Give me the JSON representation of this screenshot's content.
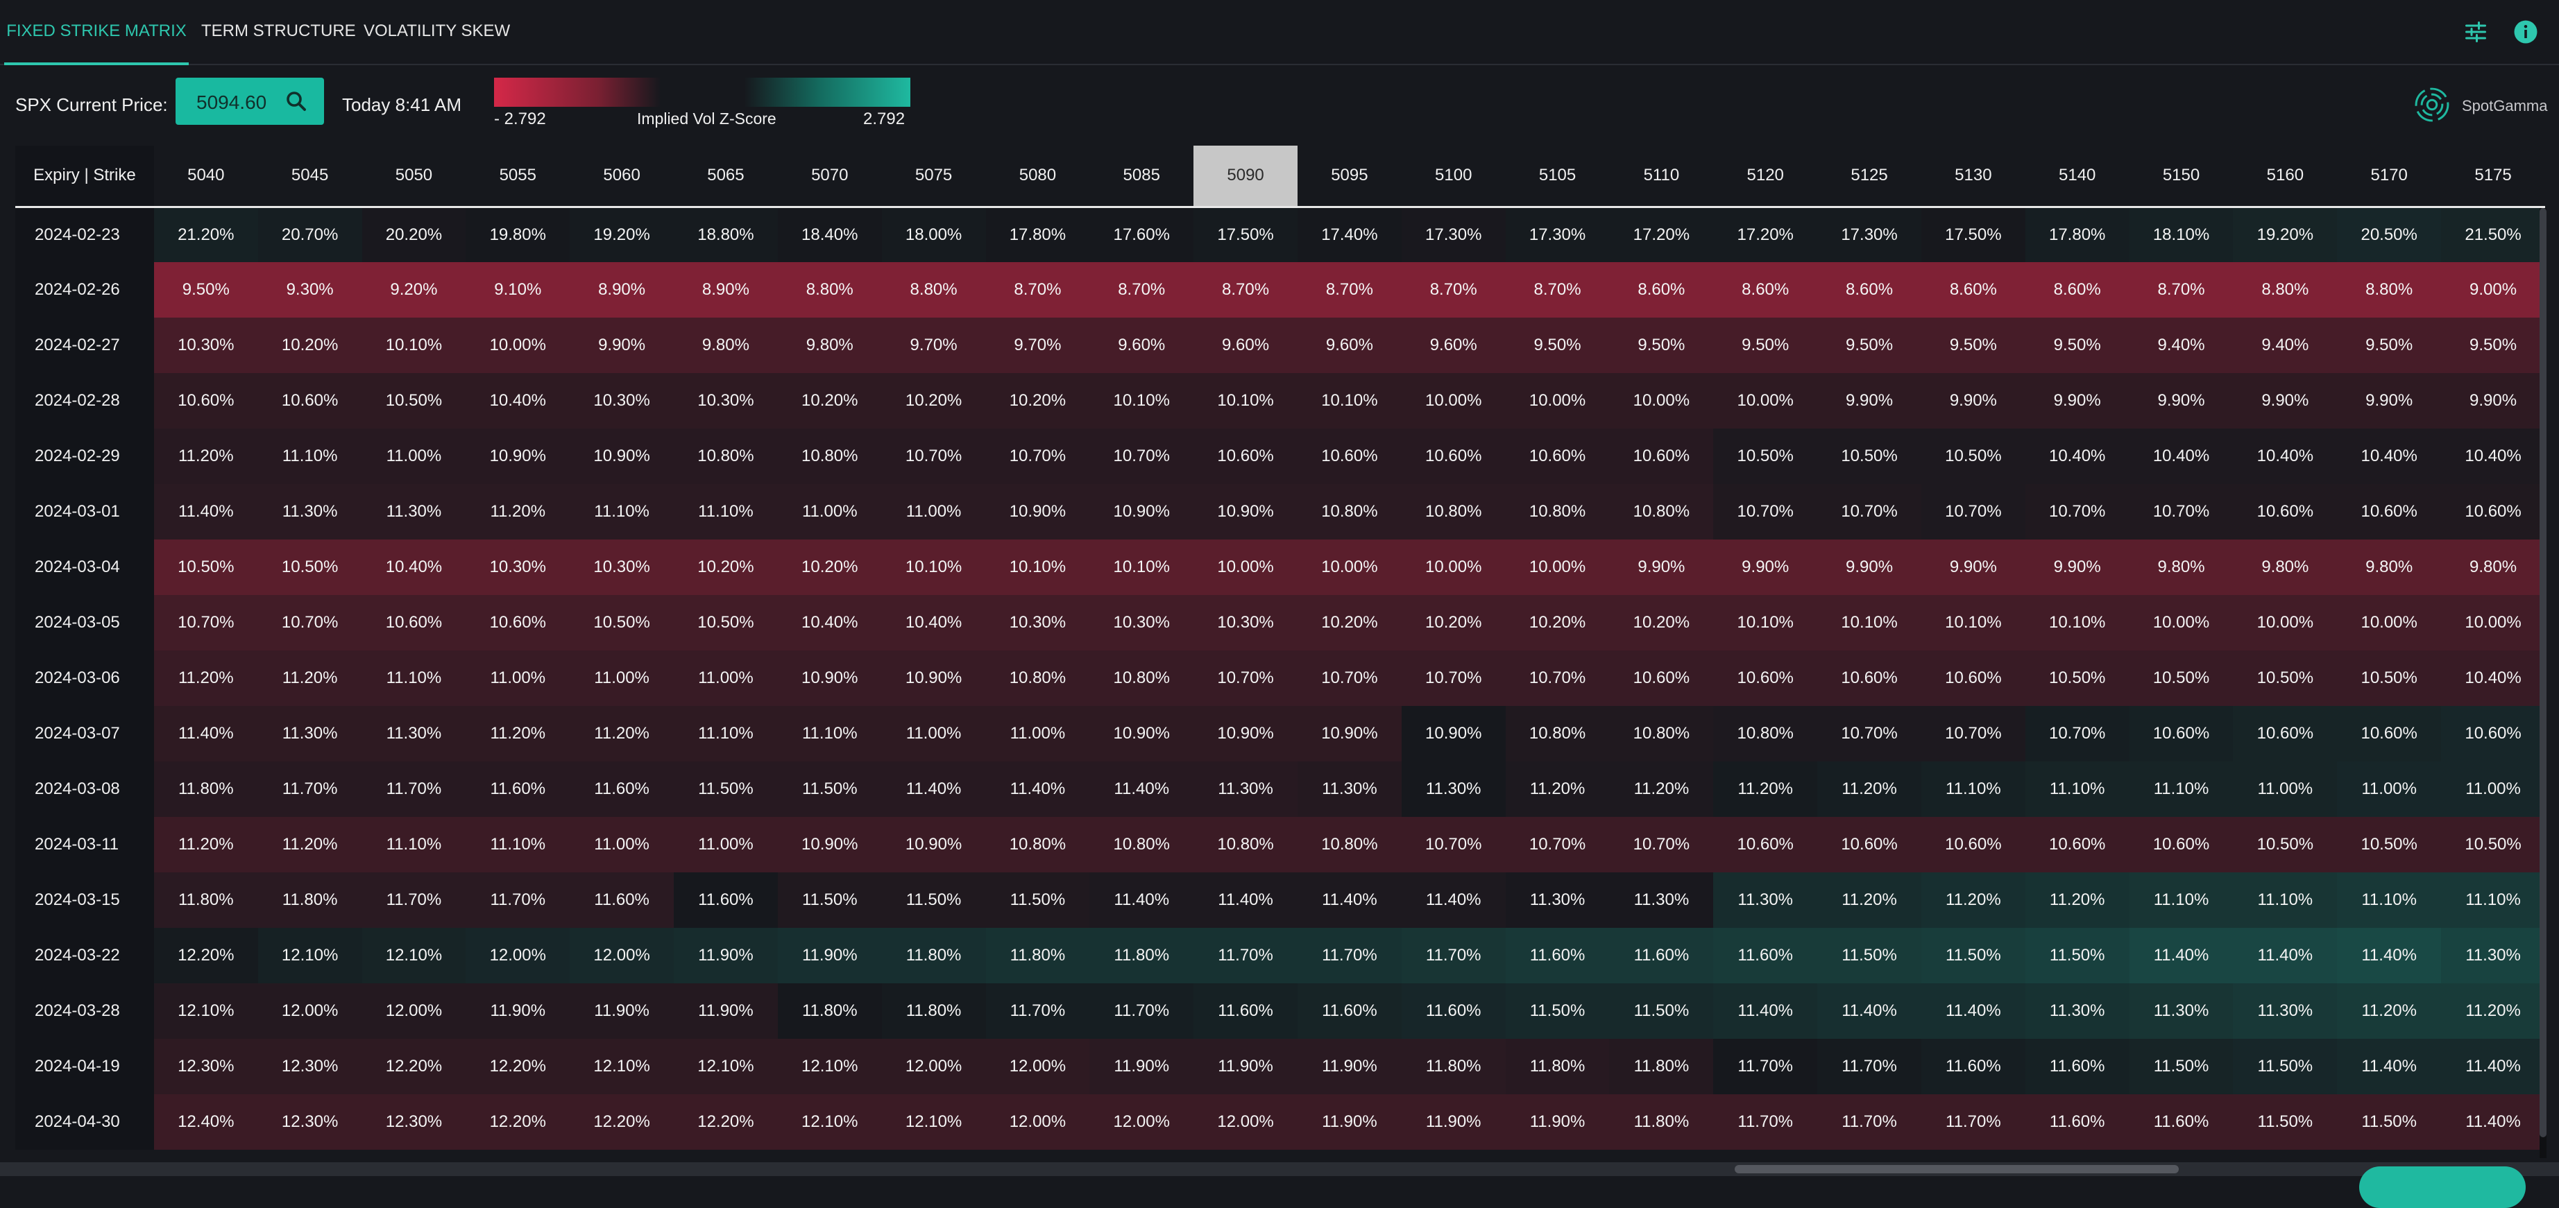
{
  "tabs": [
    {
      "label": "FIXED STRIKE MATRIX",
      "active": true
    },
    {
      "label": "TERM STRUCTURE",
      "active": false
    },
    {
      "label": "VOLATILITY SKEW",
      "active": false
    }
  ],
  "header_icons": [
    "sliders-icon",
    "info-icon"
  ],
  "controls": {
    "price_label": "SPX Current Price:",
    "price_value": "5094.60",
    "time_label": "Today 8:41 AM"
  },
  "scale": {
    "min": "- 2.792",
    "title": "Implied Vol Z-Score",
    "max": "2.792",
    "colors": {
      "negative": "#d42848",
      "neutral": "#16181d",
      "positive": "#1fb9a0"
    }
  },
  "brand": {
    "name": "SpotGamma"
  },
  "matrix": {
    "corner_label": "Expiry | Strike",
    "highlight_strike": "5090",
    "strikes": [
      "5040",
      "5045",
      "5050",
      "5055",
      "5060",
      "5065",
      "5070",
      "5075",
      "5080",
      "5085",
      "5090",
      "5095",
      "5100",
      "5105",
      "5110",
      "5120",
      "5125",
      "5130",
      "5140",
      "5150",
      "5160",
      "5170",
      "5175"
    ],
    "rows": [
      {
        "expiry": "2024-02-23",
        "values": [
          "21.20%",
          "20.70%",
          "20.20%",
          "19.80%",
          "19.20%",
          "18.80%",
          "18.40%",
          "18.00%",
          "17.80%",
          "17.60%",
          "17.50%",
          "17.40%",
          "17.30%",
          "17.30%",
          "17.20%",
          "17.20%",
          "17.30%",
          "17.50%",
          "17.80%",
          "18.10%",
          "19.20%",
          "20.50%",
          "21.50%"
        ],
        "z": [
          0.15,
          0.1,
          -0.05,
          0.0,
          0.05,
          0.05,
          0.0,
          0.05,
          0.0,
          0.0,
          0.05,
          0.0,
          -0.05,
          0.05,
          0.05,
          0.05,
          0.05,
          -0.02,
          0.1,
          0.15,
          0.2,
          0.25,
          0.2
        ]
      },
      {
        "expiry": "2024-02-26",
        "values": [
          "9.50%",
          "9.30%",
          "9.20%",
          "9.10%",
          "8.90%",
          "8.90%",
          "8.80%",
          "8.80%",
          "8.70%",
          "8.70%",
          "8.70%",
          "8.70%",
          "8.70%",
          "8.70%",
          "8.60%",
          "8.60%",
          "8.60%",
          "8.60%",
          "8.60%",
          "8.70%",
          "8.80%",
          "8.80%",
          "9.00%"
        ],
        "z": [
          -1.55,
          -1.55,
          -1.55,
          -1.55,
          -1.55,
          -1.55,
          -1.55,
          -1.55,
          -1.55,
          -1.55,
          -1.55,
          -1.55,
          -1.55,
          -1.55,
          -1.55,
          -1.55,
          -1.55,
          -1.55,
          -1.55,
          -1.55,
          -1.55,
          -1.55,
          -1.55
        ]
      },
      {
        "expiry": "2024-02-27",
        "values": [
          "10.30%",
          "10.20%",
          "10.10%",
          "10.00%",
          "9.90%",
          "9.80%",
          "9.80%",
          "9.70%",
          "9.70%",
          "9.60%",
          "9.60%",
          "9.60%",
          "9.60%",
          "9.50%",
          "9.50%",
          "9.50%",
          "9.50%",
          "9.50%",
          "9.50%",
          "9.40%",
          "9.40%",
          "9.50%",
          "9.50%"
        ],
        "z": [
          -0.7,
          -0.7,
          -0.7,
          -0.7,
          -0.7,
          -0.7,
          -0.7,
          -0.7,
          -0.7,
          -0.7,
          -0.7,
          -0.7,
          -0.7,
          -0.7,
          -0.7,
          -0.7,
          -0.7,
          -0.7,
          -0.7,
          -0.7,
          -0.7,
          -0.7,
          -0.7
        ]
      },
      {
        "expiry": "2024-02-28",
        "values": [
          "10.60%",
          "10.60%",
          "10.50%",
          "10.40%",
          "10.30%",
          "10.30%",
          "10.20%",
          "10.20%",
          "10.20%",
          "10.10%",
          "10.10%",
          "10.10%",
          "10.00%",
          "10.00%",
          "10.00%",
          "10.00%",
          "9.90%",
          "9.90%",
          "9.90%",
          "9.90%",
          "9.90%",
          "9.90%",
          "9.90%"
        ],
        "z": [
          -0.35,
          -0.35,
          -0.35,
          -0.35,
          -0.35,
          -0.35,
          -0.35,
          -0.35,
          -0.35,
          -0.35,
          -0.35,
          -0.35,
          -0.35,
          -0.35,
          -0.35,
          -0.35,
          -0.35,
          -0.35,
          -0.35,
          -0.35,
          -0.35,
          -0.35,
          -0.35
        ]
      },
      {
        "expiry": "2024-02-29",
        "values": [
          "11.20%",
          "11.10%",
          "11.00%",
          "10.90%",
          "10.90%",
          "10.80%",
          "10.80%",
          "10.70%",
          "10.70%",
          "10.70%",
          "10.60%",
          "10.60%",
          "10.60%",
          "10.60%",
          "10.60%",
          "10.50%",
          "10.50%",
          "10.50%",
          "10.40%",
          "10.40%",
          "10.40%",
          "10.40%",
          "10.40%"
        ],
        "z": [
          -0.25,
          -0.25,
          -0.25,
          -0.25,
          -0.25,
          -0.25,
          -0.25,
          -0.25,
          -0.25,
          -0.25,
          -0.25,
          -0.25,
          -0.25,
          -0.25,
          -0.25,
          -0.1,
          -0.1,
          -0.1,
          -0.1,
          -0.1,
          -0.1,
          -0.1,
          -0.1
        ]
      },
      {
        "expiry": "2024-03-01",
        "values": [
          "11.40%",
          "11.30%",
          "11.30%",
          "11.20%",
          "11.10%",
          "11.10%",
          "11.00%",
          "11.00%",
          "10.90%",
          "10.90%",
          "10.90%",
          "10.80%",
          "10.80%",
          "10.80%",
          "10.80%",
          "10.70%",
          "10.70%",
          "10.70%",
          "10.70%",
          "10.70%",
          "10.60%",
          "10.60%",
          "10.60%"
        ],
        "z": [
          -0.3,
          -0.3,
          -0.3,
          -0.3,
          -0.3,
          -0.3,
          -0.3,
          -0.3,
          -0.3,
          -0.3,
          -0.3,
          -0.3,
          -0.3,
          -0.3,
          -0.3,
          -0.15,
          -0.15,
          -0.1,
          -0.15,
          -0.15,
          -0.15,
          -0.15,
          -0.15
        ]
      },
      {
        "expiry": "2024-03-04",
        "values": [
          "10.50%",
          "10.50%",
          "10.40%",
          "10.30%",
          "10.30%",
          "10.20%",
          "10.20%",
          "10.10%",
          "10.10%",
          "10.10%",
          "10.00%",
          "10.00%",
          "10.00%",
          "10.00%",
          "9.90%",
          "9.90%",
          "9.90%",
          "9.90%",
          "9.90%",
          "9.80%",
          "9.80%",
          "9.80%",
          "9.80%"
        ],
        "z": [
          -1.0,
          -1.0,
          -1.0,
          -1.0,
          -1.0,
          -1.0,
          -1.0,
          -1.0,
          -1.0,
          -1.0,
          -1.0,
          -1.0,
          -1.0,
          -1.0,
          -1.0,
          -1.0,
          -1.0,
          -1.0,
          -1.0,
          -1.0,
          -1.0,
          -1.0,
          -1.0
        ]
      },
      {
        "expiry": "2024-03-05",
        "values": [
          "10.70%",
          "10.70%",
          "10.60%",
          "10.60%",
          "10.50%",
          "10.50%",
          "10.40%",
          "10.40%",
          "10.30%",
          "10.30%",
          "10.30%",
          "10.20%",
          "10.20%",
          "10.20%",
          "10.20%",
          "10.10%",
          "10.10%",
          "10.10%",
          "10.10%",
          "10.00%",
          "10.00%",
          "10.00%",
          "10.00%"
        ],
        "z": [
          -0.65,
          -0.65,
          -0.65,
          -0.65,
          -0.65,
          -0.65,
          -0.65,
          -0.65,
          -0.65,
          -0.65,
          -0.65,
          -0.65,
          -0.65,
          -0.65,
          -0.65,
          -0.65,
          -0.65,
          -0.65,
          -0.65,
          -0.65,
          -0.65,
          -0.65,
          -0.65
        ]
      },
      {
        "expiry": "2024-03-06",
        "values": [
          "11.20%",
          "11.20%",
          "11.10%",
          "11.00%",
          "11.00%",
          "11.00%",
          "10.90%",
          "10.90%",
          "10.80%",
          "10.80%",
          "10.70%",
          "10.70%",
          "10.70%",
          "10.70%",
          "10.60%",
          "10.60%",
          "10.60%",
          "10.60%",
          "10.50%",
          "10.50%",
          "10.50%",
          "10.50%",
          "10.40%"
        ],
        "z": [
          -0.5,
          -0.5,
          -0.5,
          -0.5,
          -0.5,
          -0.5,
          -0.5,
          -0.5,
          -0.5,
          -0.5,
          -0.5,
          -0.5,
          -0.5,
          -0.5,
          -0.5,
          -0.5,
          -0.5,
          -0.5,
          -0.5,
          -0.5,
          -0.5,
          -0.5,
          -0.5
        ]
      },
      {
        "expiry": "2024-03-07",
        "values": [
          "11.40%",
          "11.30%",
          "11.30%",
          "11.20%",
          "11.20%",
          "11.10%",
          "11.10%",
          "11.00%",
          "11.00%",
          "10.90%",
          "10.90%",
          "10.90%",
          "10.90%",
          "10.80%",
          "10.80%",
          "10.80%",
          "10.70%",
          "10.70%",
          "10.70%",
          "10.60%",
          "10.60%",
          "10.60%",
          "10.60%"
        ],
        "z": [
          -0.35,
          -0.35,
          -0.35,
          -0.35,
          -0.35,
          -0.35,
          -0.35,
          -0.35,
          -0.35,
          -0.35,
          -0.35,
          -0.35,
          0.0,
          -0.15,
          -0.15,
          -0.1,
          -0.1,
          -0.1,
          0.1,
          0.15,
          0.2,
          0.2,
          0.25
        ]
      },
      {
        "expiry": "2024-03-08",
        "values": [
          "11.80%",
          "11.70%",
          "11.70%",
          "11.60%",
          "11.60%",
          "11.50%",
          "11.50%",
          "11.40%",
          "11.40%",
          "11.40%",
          "11.30%",
          "11.30%",
          "11.30%",
          "11.20%",
          "11.20%",
          "11.20%",
          "11.20%",
          "11.10%",
          "11.10%",
          "11.10%",
          "11.00%",
          "11.00%",
          "11.00%"
        ],
        "z": [
          -0.25,
          -0.25,
          -0.25,
          -0.25,
          -0.25,
          -0.25,
          -0.25,
          -0.25,
          -0.25,
          -0.25,
          -0.25,
          -0.2,
          0.0,
          -0.1,
          -0.1,
          0.05,
          0.1,
          0.15,
          0.2,
          0.2,
          0.2,
          0.25,
          0.25
        ]
      },
      {
        "expiry": "2024-03-11",
        "values": [
          "11.20%",
          "11.20%",
          "11.10%",
          "11.10%",
          "11.00%",
          "11.00%",
          "10.90%",
          "10.90%",
          "10.80%",
          "10.80%",
          "10.80%",
          "10.80%",
          "10.70%",
          "10.70%",
          "10.70%",
          "10.60%",
          "10.60%",
          "10.60%",
          "10.60%",
          "10.60%",
          "10.50%",
          "10.50%",
          "10.50%"
        ],
        "z": [
          -0.55,
          -0.55,
          -0.55,
          -0.55,
          -0.55,
          -0.55,
          -0.55,
          -0.55,
          -0.55,
          -0.55,
          -0.55,
          -0.55,
          -0.55,
          -0.55,
          -0.55,
          -0.55,
          -0.55,
          -0.55,
          -0.55,
          -0.55,
          -0.55,
          -0.55,
          -0.55
        ]
      },
      {
        "expiry": "2024-03-15",
        "values": [
          "11.80%",
          "11.80%",
          "11.70%",
          "11.70%",
          "11.60%",
          "11.60%",
          "11.50%",
          "11.50%",
          "11.50%",
          "11.40%",
          "11.40%",
          "11.40%",
          "11.40%",
          "11.30%",
          "11.30%",
          "11.30%",
          "11.20%",
          "11.20%",
          "11.20%",
          "11.10%",
          "11.10%",
          "11.10%",
          "11.10%"
        ],
        "z": [
          -0.3,
          -0.3,
          -0.3,
          -0.3,
          -0.3,
          0.0,
          -0.15,
          -0.15,
          -0.15,
          -0.1,
          -0.1,
          -0.1,
          -0.1,
          -0.05,
          -0.05,
          0.35,
          0.35,
          0.4,
          0.45,
          0.5,
          0.5,
          0.55,
          0.55
        ]
      },
      {
        "expiry": "2024-03-22",
        "values": [
          "12.20%",
          "12.10%",
          "12.10%",
          "12.00%",
          "12.00%",
          "11.90%",
          "11.90%",
          "11.80%",
          "11.80%",
          "11.80%",
          "11.70%",
          "11.70%",
          "11.70%",
          "11.60%",
          "11.60%",
          "11.60%",
          "11.50%",
          "11.50%",
          "11.50%",
          "11.40%",
          "11.40%",
          "11.40%",
          "11.30%"
        ],
        "z": [
          0.05,
          0.15,
          0.2,
          0.25,
          0.3,
          0.35,
          0.4,
          0.4,
          0.45,
          0.45,
          0.45,
          0.45,
          0.5,
          0.55,
          0.55,
          0.6,
          0.6,
          0.65,
          0.7,
          0.8,
          0.8,
          0.85,
          0.75
        ]
      },
      {
        "expiry": "2024-03-28",
        "values": [
          "12.10%",
          "12.00%",
          "12.00%",
          "11.90%",
          "11.90%",
          "11.90%",
          "11.80%",
          "11.80%",
          "11.70%",
          "11.70%",
          "11.60%",
          "11.60%",
          "11.60%",
          "11.50%",
          "11.50%",
          "11.40%",
          "11.40%",
          "11.40%",
          "11.30%",
          "11.30%",
          "11.30%",
          "11.20%",
          "11.20%"
        ],
        "z": [
          -0.2,
          -0.2,
          -0.2,
          -0.2,
          -0.2,
          -0.2,
          0.0,
          0.05,
          0.1,
          0.1,
          0.15,
          0.2,
          0.25,
          0.3,
          0.3,
          0.35,
          0.4,
          0.4,
          0.45,
          0.5,
          0.55,
          0.6,
          0.6
        ]
      },
      {
        "expiry": "2024-04-19",
        "values": [
          "12.30%",
          "12.30%",
          "12.20%",
          "12.20%",
          "12.10%",
          "12.10%",
          "12.10%",
          "12.00%",
          "12.00%",
          "11.90%",
          "11.90%",
          "11.90%",
          "11.80%",
          "11.80%",
          "11.80%",
          "11.70%",
          "11.70%",
          "11.60%",
          "11.60%",
          "11.50%",
          "11.50%",
          "11.40%",
          "11.40%"
        ],
        "z": [
          -0.35,
          -0.35,
          -0.35,
          -0.35,
          -0.35,
          -0.35,
          -0.35,
          -0.35,
          -0.35,
          -0.3,
          -0.3,
          -0.3,
          -0.3,
          -0.25,
          -0.2,
          0.0,
          0.05,
          0.1,
          0.15,
          0.2,
          0.25,
          0.3,
          0.3
        ]
      },
      {
        "expiry": "2024-04-30",
        "values": [
          "12.40%",
          "12.30%",
          "12.30%",
          "12.20%",
          "12.20%",
          "12.20%",
          "12.10%",
          "12.10%",
          "12.00%",
          "12.00%",
          "12.00%",
          "11.90%",
          "11.90%",
          "11.90%",
          "11.80%",
          "11.70%",
          "11.70%",
          "11.70%",
          "11.60%",
          "11.60%",
          "11.50%",
          "11.50%",
          "11.40%"
        ],
        "z": [
          -0.55,
          -0.55,
          -0.55,
          -0.55,
          -0.55,
          -0.55,
          -0.55,
          -0.55,
          -0.55,
          -0.55,
          -0.55,
          -0.55,
          -0.55,
          -0.55,
          -0.55,
          -0.55,
          -0.55,
          -0.55,
          -0.55,
          -0.55,
          -0.55,
          -0.55,
          -0.55
        ]
      }
    ]
  }
}
